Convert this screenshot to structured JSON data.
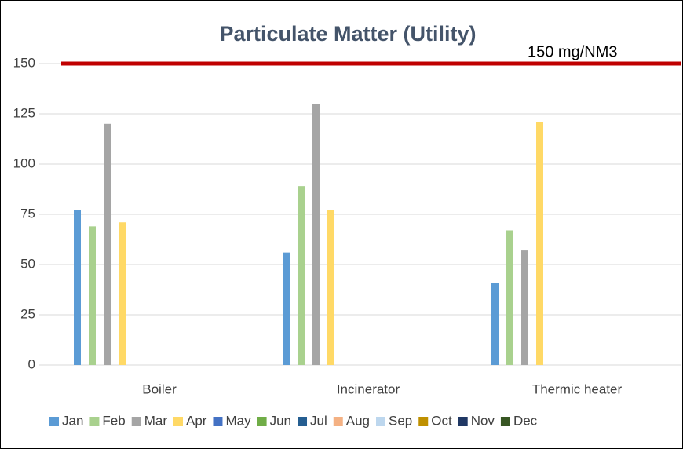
{
  "chart_data": {
    "type": "bar",
    "title": "Particulate Matter (Utility)",
    "categories": [
      "Boiler",
      "Incinerator",
      "Thermic heater"
    ],
    "series": [
      {
        "name": "Jan",
        "color": "#5b9bd5",
        "values": [
          77,
          56,
          41
        ]
      },
      {
        "name": "Feb",
        "color": "#a9d18e",
        "values": [
          69,
          89,
          67
        ]
      },
      {
        "name": "Mar",
        "color": "#a5a5a5",
        "values": [
          120,
          130,
          57
        ]
      },
      {
        "name": "Apr",
        "color": "#ffd966",
        "values": [
          71,
          77,
          121
        ]
      },
      {
        "name": "May",
        "color": "#4472c4",
        "values": [
          null,
          null,
          null
        ]
      },
      {
        "name": "Jun",
        "color": "#70ad47",
        "values": [
          null,
          null,
          null
        ]
      },
      {
        "name": "Jul",
        "color": "#255e91",
        "values": [
          null,
          null,
          null
        ]
      },
      {
        "name": "Aug",
        "color": "#f4b183",
        "values": [
          null,
          null,
          null
        ]
      },
      {
        "name": "Sep",
        "color": "#bdd7ee",
        "values": [
          null,
          null,
          null
        ]
      },
      {
        "name": "Oct",
        "color": "#bf9000",
        "values": [
          null,
          null,
          null
        ]
      },
      {
        "name": "Nov",
        "color": "#203864",
        "values": [
          null,
          null,
          null
        ]
      },
      {
        "name": "Dec",
        "color": "#375623",
        "values": [
          null,
          null,
          null
        ]
      }
    ],
    "threshold": {
      "value": 150,
      "label": "150 mg/NM3",
      "color": "#c00000"
    },
    "ylim": [
      0,
      150
    ],
    "yticks": [
      0,
      25,
      50,
      75,
      100,
      125,
      150
    ],
    "grid": true,
    "legend": "bottom"
  }
}
